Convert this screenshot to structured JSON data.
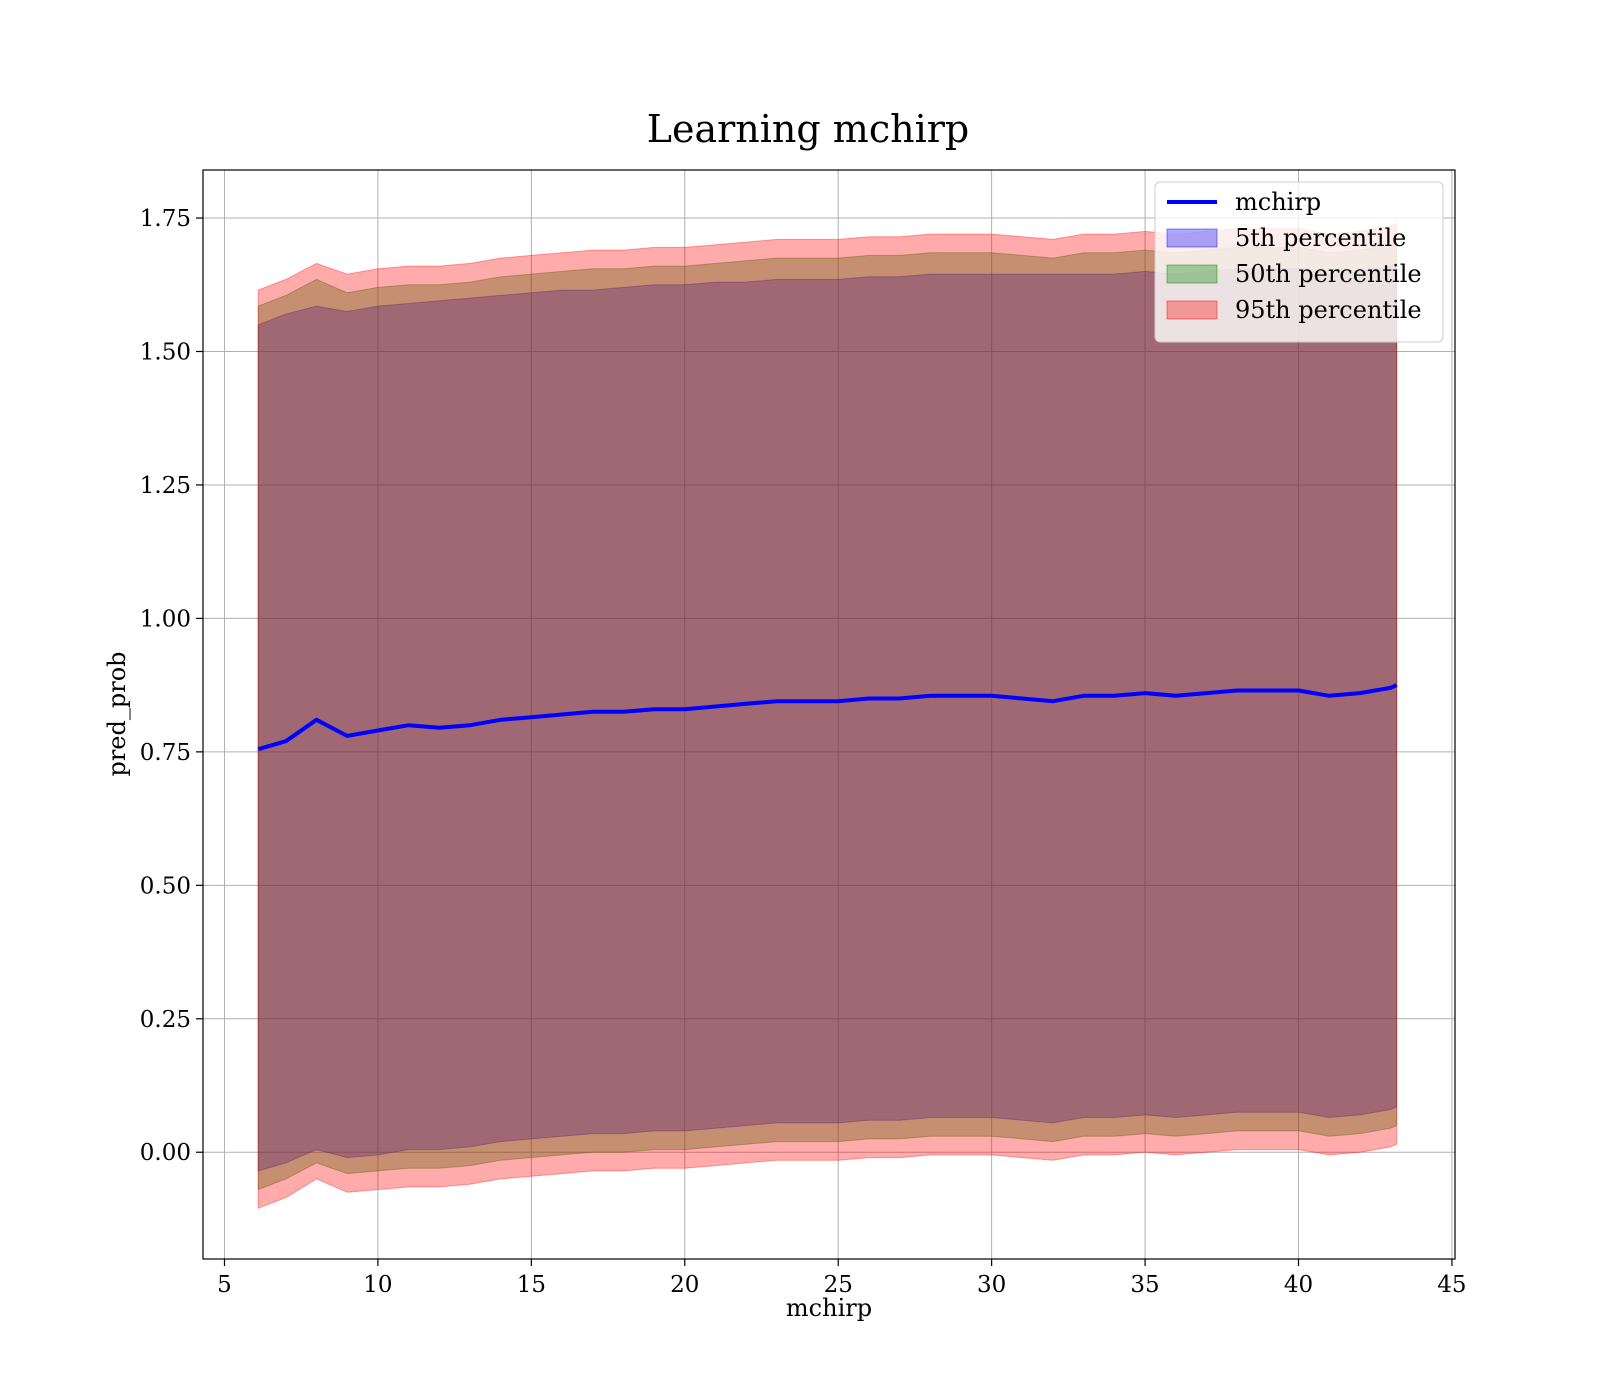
{
  "chart_data": {
    "type": "area",
    "title": "Learning mchirp",
    "xlabel": "mchirp",
    "ylabel": "pred_prob",
    "xlim": [
      4.3,
      45.1
    ],
    "ylim": [
      -0.2,
      1.84
    ],
    "xticks": [
      5,
      10,
      15,
      20,
      25,
      30,
      35,
      40,
      45
    ],
    "yticks": [
      0.0,
      0.25,
      0.5,
      0.75,
      1.0,
      1.25,
      1.5,
      1.75
    ],
    "xtick_labels": [
      "5",
      "10",
      "15",
      "20",
      "25",
      "30",
      "35",
      "40",
      "45"
    ],
    "ytick_labels": [
      "0.00",
      "0.25",
      "0.50",
      "0.75",
      "1.00",
      "1.25",
      "1.50",
      "1.75"
    ],
    "grid": true,
    "legend_position": "top-right",
    "x": [
      6.1,
      7.0,
      8.0,
      9.0,
      10.0,
      11.0,
      12.0,
      13.0,
      14.0,
      15.0,
      16.0,
      17.0,
      18.0,
      19.0,
      20.0,
      21.0,
      22.0,
      23.0,
      24.0,
      25.0,
      26.0,
      27.0,
      28.0,
      29.0,
      30.0,
      31.0,
      32.0,
      33.0,
      34.0,
      35.0,
      36.0,
      37.0,
      38.0,
      39.0,
      40.0,
      41.0,
      42.0,
      43.0,
      43.2
    ],
    "series": [
      {
        "name": "mchirp",
        "kind": "line",
        "color": "#0000ff",
        "values": [
          0.755,
          0.77,
          0.81,
          0.78,
          0.79,
          0.8,
          0.795,
          0.8,
          0.81,
          0.815,
          0.82,
          0.825,
          0.825,
          0.83,
          0.83,
          0.835,
          0.84,
          0.845,
          0.845,
          0.845,
          0.85,
          0.85,
          0.855,
          0.855,
          0.855,
          0.85,
          0.845,
          0.855,
          0.855,
          0.86,
          0.855,
          0.86,
          0.865,
          0.865,
          0.865,
          0.855,
          0.86,
          0.87,
          0.875
        ]
      },
      {
        "name": "5th percentile",
        "kind": "band",
        "color": "#0000ff",
        "upper": [
          1.55,
          1.57,
          1.585,
          1.575,
          1.585,
          1.59,
          1.595,
          1.6,
          1.605,
          1.61,
          1.615,
          1.615,
          1.62,
          1.625,
          1.625,
          1.63,
          1.63,
          1.635,
          1.635,
          1.635,
          1.64,
          1.64,
          1.645,
          1.645,
          1.645,
          1.645,
          1.645,
          1.645,
          1.645,
          1.65,
          1.645,
          1.65,
          1.655,
          1.655,
          1.655,
          1.645,
          1.65,
          1.66,
          1.665
        ],
        "lower": [
          -0.035,
          -0.02,
          0.005,
          -0.01,
          -0.005,
          0.005,
          0.005,
          0.01,
          0.02,
          0.025,
          0.03,
          0.035,
          0.035,
          0.04,
          0.04,
          0.045,
          0.05,
          0.055,
          0.055,
          0.055,
          0.06,
          0.06,
          0.065,
          0.065,
          0.065,
          0.06,
          0.055,
          0.065,
          0.065,
          0.07,
          0.065,
          0.07,
          0.075,
          0.075,
          0.075,
          0.065,
          0.07,
          0.08,
          0.085
        ]
      },
      {
        "name": "50th percentile",
        "kind": "band",
        "color": "#008000",
        "upper": [
          1.585,
          1.605,
          1.635,
          1.61,
          1.62,
          1.625,
          1.625,
          1.63,
          1.64,
          1.645,
          1.65,
          1.655,
          1.655,
          1.66,
          1.66,
          1.665,
          1.67,
          1.675,
          1.675,
          1.675,
          1.68,
          1.68,
          1.685,
          1.685,
          1.685,
          1.68,
          1.675,
          1.685,
          1.685,
          1.69,
          1.685,
          1.69,
          1.695,
          1.695,
          1.695,
          1.685,
          1.69,
          1.7,
          1.705
        ],
        "lower": [
          -0.07,
          -0.05,
          -0.02,
          -0.04,
          -0.035,
          -0.03,
          -0.03,
          -0.025,
          -0.015,
          -0.01,
          -0.005,
          0.0,
          0.0,
          0.005,
          0.005,
          0.01,
          0.015,
          0.02,
          0.02,
          0.02,
          0.025,
          0.025,
          0.03,
          0.03,
          0.03,
          0.025,
          0.02,
          0.03,
          0.03,
          0.035,
          0.03,
          0.035,
          0.04,
          0.04,
          0.04,
          0.03,
          0.035,
          0.045,
          0.05
        ]
      },
      {
        "name": "95th percentile",
        "kind": "band",
        "color": "#ff0000",
        "upper": [
          1.615,
          1.635,
          1.665,
          1.645,
          1.655,
          1.66,
          1.66,
          1.665,
          1.675,
          1.68,
          1.685,
          1.69,
          1.69,
          1.695,
          1.695,
          1.7,
          1.705,
          1.71,
          1.71,
          1.71,
          1.715,
          1.715,
          1.72,
          1.72,
          1.72,
          1.715,
          1.71,
          1.72,
          1.72,
          1.725,
          1.72,
          1.725,
          1.73,
          1.73,
          1.73,
          1.72,
          1.725,
          1.735,
          1.74
        ],
        "lower": [
          -0.105,
          -0.085,
          -0.05,
          -0.075,
          -0.07,
          -0.065,
          -0.065,
          -0.06,
          -0.05,
          -0.045,
          -0.04,
          -0.035,
          -0.035,
          -0.03,
          -0.03,
          -0.025,
          -0.02,
          -0.015,
          -0.015,
          -0.015,
          -0.01,
          -0.01,
          -0.005,
          -0.005,
          -0.005,
          -0.01,
          -0.015,
          -0.005,
          -0.005,
          0.0,
          -0.005,
          0.0,
          0.005,
          0.005,
          0.005,
          -0.005,
          0.0,
          0.01,
          0.015
        ]
      }
    ]
  }
}
